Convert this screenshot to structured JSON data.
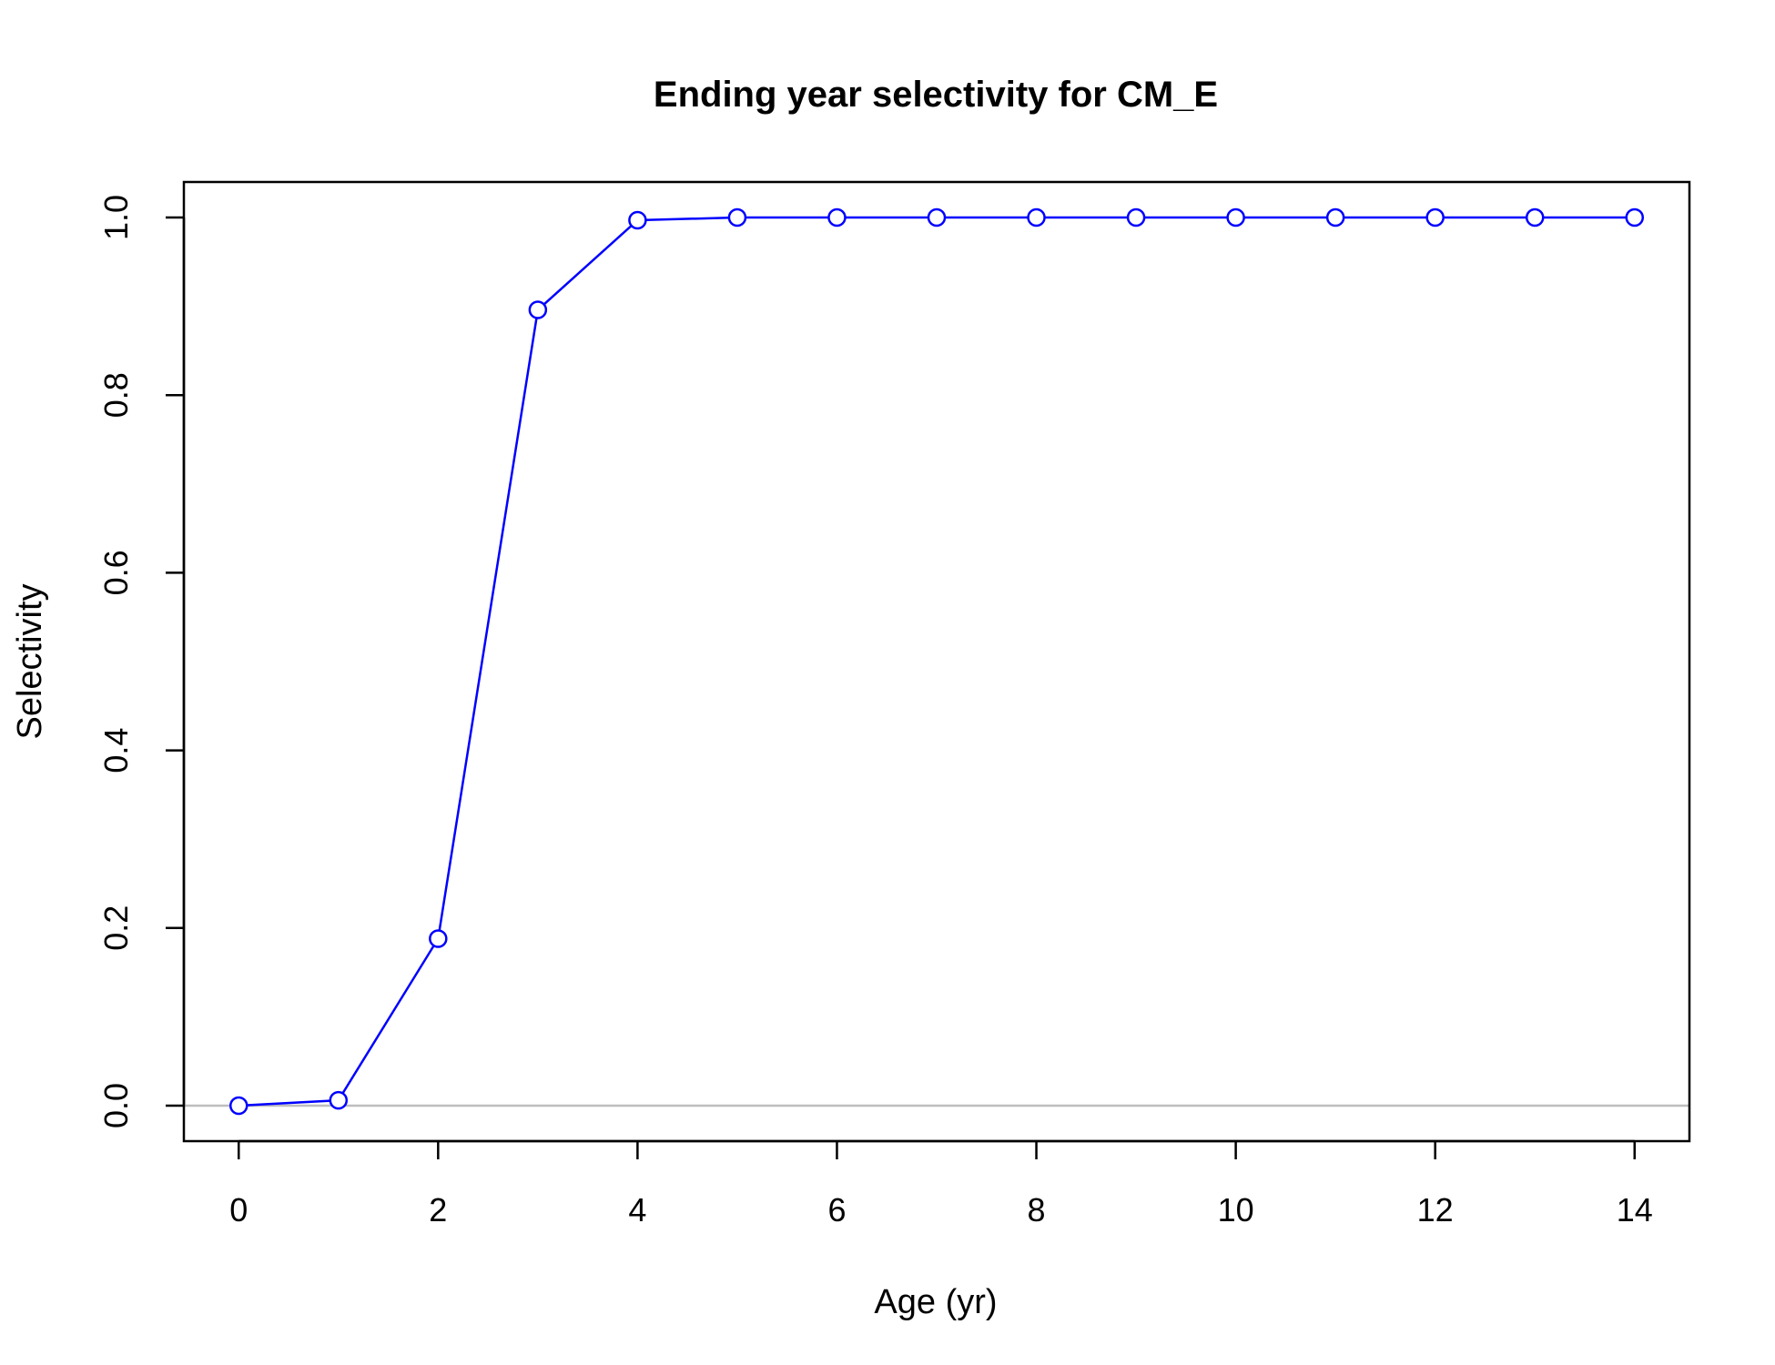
{
  "chart_data": {
    "type": "line",
    "title": "Ending year selectivity for CM_E",
    "xlabel": "Age (yr)",
    "ylabel": "Selectivity",
    "x": [
      0,
      1,
      2,
      3,
      4,
      5,
      6,
      7,
      8,
      9,
      10,
      11,
      12,
      13,
      14
    ],
    "series": [
      {
        "values": [
          0.0,
          0.006,
          0.188,
          0.896,
          0.997,
          1.0,
          1.0,
          1.0,
          1.0,
          1.0,
          1.0,
          1.0,
          1.0,
          1.0,
          1.0
        ],
        "color": "#0000ff",
        "marker": "open-circle"
      }
    ],
    "xlim": [
      -0.55,
      14.55
    ],
    "ylim": [
      -0.04,
      1.04
    ],
    "xticks": [
      0,
      2,
      4,
      6,
      8,
      10,
      12,
      14
    ],
    "yticks": [
      0.0,
      0.2,
      0.4,
      0.6,
      0.8,
      1.0
    ],
    "xtick_labels": [
      "0",
      "2",
      "4",
      "6",
      "8",
      "10",
      "12",
      "14"
    ],
    "ytick_labels": [
      "0.0",
      "0.2",
      "0.4",
      "0.6",
      "0.8",
      "1.0"
    ],
    "reference_line": {
      "y": 0,
      "color": "#bebebe"
    },
    "grid": false,
    "legend": "none"
  }
}
